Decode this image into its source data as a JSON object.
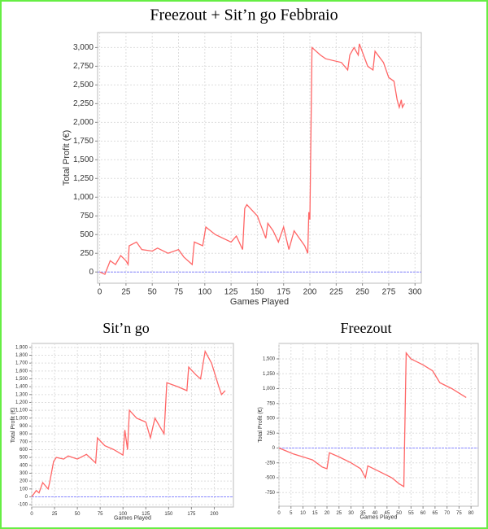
{
  "chart_data": [
    {
      "type": "line",
      "title": "Freezout + Sit’n go Febbraio",
      "x_label": "Games Played",
      "y_label": "Total Profit (€)",
      "xlim": [
        -2,
        306
      ],
      "ylim": [
        -150,
        3200
      ],
      "xticks": [
        0,
        25,
        50,
        75,
        100,
        125,
        150,
        175,
        200,
        225,
        250,
        275,
        300
      ],
      "yticks": [
        0,
        250,
        500,
        750,
        {
          "value": 1000,
          "label": "1,000"
        },
        {
          "value": 1250,
          "label": "1,250"
        },
        {
          "value": 1500,
          "label": "1,500"
        },
        {
          "value": 1750,
          "label": "1,750"
        },
        {
          "value": 2000,
          "label": "2,000"
        },
        {
          "value": 2250,
          "label": "2,250"
        },
        {
          "value": 2500,
          "label": "2,500"
        },
        {
          "value": 2750,
          "label": "2,750"
        },
        {
          "value": 3000,
          "label": "3,000"
        }
      ],
      "grid": true,
      "zero_line": true,
      "zero_line_color": "#8888ff",
      "series": [
        {
          "color": "#ff6666",
          "x": [
            0,
            5,
            10,
            15,
            20,
            25,
            27,
            28,
            35,
            40,
            50,
            55,
            65,
            75,
            80,
            88,
            90,
            98,
            101,
            110,
            125,
            130,
            136,
            138,
            140,
            150,
            158,
            160,
            165,
            170,
            175,
            180,
            185,
            195,
            198,
            199,
            200,
            202,
            210,
            215,
            230,
            236,
            238,
            242,
            246,
            247,
            255,
            260,
            262,
            270,
            275,
            280,
            283,
            285,
            287,
            288,
            290
          ],
          "values": [
            0,
            -30,
            150,
            100,
            220,
            150,
            100,
            350,
            400,
            300,
            280,
            320,
            250,
            300,
            200,
            100,
            400,
            350,
            600,
            500,
            400,
            480,
            300,
            850,
            900,
            750,
            450,
            650,
            550,
            400,
            600,
            300,
            550,
            350,
            250,
            800,
            700,
            3000,
            2900,
            2850,
            2800,
            2700,
            2900,
            3000,
            2900,
            3050,
            2750,
            2700,
            2950,
            2800,
            2600,
            2550,
            2300,
            2200,
            2300,
            2200,
            2250
          ]
        }
      ]
    },
    {
      "type": "line",
      "title": "Sit’n go",
      "x_label": "Games Played",
      "y_label": "Total Profit (€)",
      "xlim": [
        0,
        221
      ],
      "ylim": [
        -130,
        1950
      ],
      "xticks": [
        0,
        25,
        50,
        75,
        100,
        125,
        150,
        175,
        200
      ],
      "yticks": [
        -100,
        0,
        100,
        200,
        300,
        400,
        500,
        600,
        700,
        800,
        900,
        {
          "value": 1000,
          "label": "1,000"
        },
        {
          "value": 1100,
          "label": "1,100"
        },
        {
          "value": 1200,
          "label": "1,200"
        },
        {
          "value": 1300,
          "label": "1,300"
        },
        {
          "value": 1400,
          "label": "1,400"
        },
        {
          "value": 1500,
          "label": "1,500"
        },
        {
          "value": 1600,
          "label": "1,600"
        },
        {
          "value": 1700,
          "label": "1,700"
        },
        {
          "value": 1800,
          "label": "1,800"
        },
        {
          "value": 1900,
          "label": "1,900"
        }
      ],
      "grid": true,
      "zero_line": true,
      "zero_line_color": "#8888ff",
      "series": [
        {
          "color": "#ff6666",
          "x": [
            0,
            5,
            8,
            12,
            18,
            20,
            24,
            27,
            35,
            40,
            50,
            60,
            70,
            72,
            80,
            90,
            100,
            102,
            105,
            107,
            115,
            125,
            130,
            135,
            145,
            148,
            160,
            170,
            172,
            180,
            185,
            190,
            197,
            205,
            208,
            212
          ],
          "values": [
            0,
            80,
            50,
            180,
            100,
            200,
            450,
            500,
            480,
            520,
            480,
            540,
            430,
            750,
            650,
            600,
            530,
            850,
            600,
            1100,
            1000,
            950,
            750,
            1000,
            800,
            1450,
            1400,
            1350,
            1650,
            1550,
            1500,
            1850,
            1700,
            1400,
            1300,
            1350
          ]
        }
      ]
    },
    {
      "type": "line",
      "title": "Freezout",
      "x_label": "Games Played",
      "y_label": "Total Profit (€)",
      "xlim": [
        0,
        83
      ],
      "ylim": [
        -980,
        1760
      ],
      "xticks": [
        0,
        5,
        10,
        15,
        20,
        25,
        30,
        35,
        40,
        45,
        50,
        55,
        60,
        65,
        70,
        75,
        80
      ],
      "yticks": [
        -750,
        -500,
        -250,
        0,
        250,
        500,
        750,
        {
          "value": 1000,
          "label": "1,000"
        },
        {
          "value": 1250,
          "label": "1,250"
        },
        {
          "value": 1500,
          "label": "1,500"
        }
      ],
      "grid": true,
      "zero_line": true,
      "zero_line_color": "#8888ff",
      "series": [
        {
          "color": "#ff6666",
          "x": [
            0,
            3,
            6,
            10,
            14,
            18,
            20,
            21,
            25,
            30,
            34,
            36,
            37,
            42,
            47,
            50,
            52,
            53,
            55,
            60,
            64,
            67,
            72,
            76,
            78
          ],
          "values": [
            0,
            -50,
            -100,
            -150,
            -200,
            -320,
            -350,
            -80,
            -150,
            -250,
            -350,
            -500,
            -300,
            -400,
            -500,
            -600,
            -650,
            1600,
            1500,
            1400,
            1300,
            1100,
            1000,
            900,
            850
          ]
        }
      ]
    }
  ]
}
